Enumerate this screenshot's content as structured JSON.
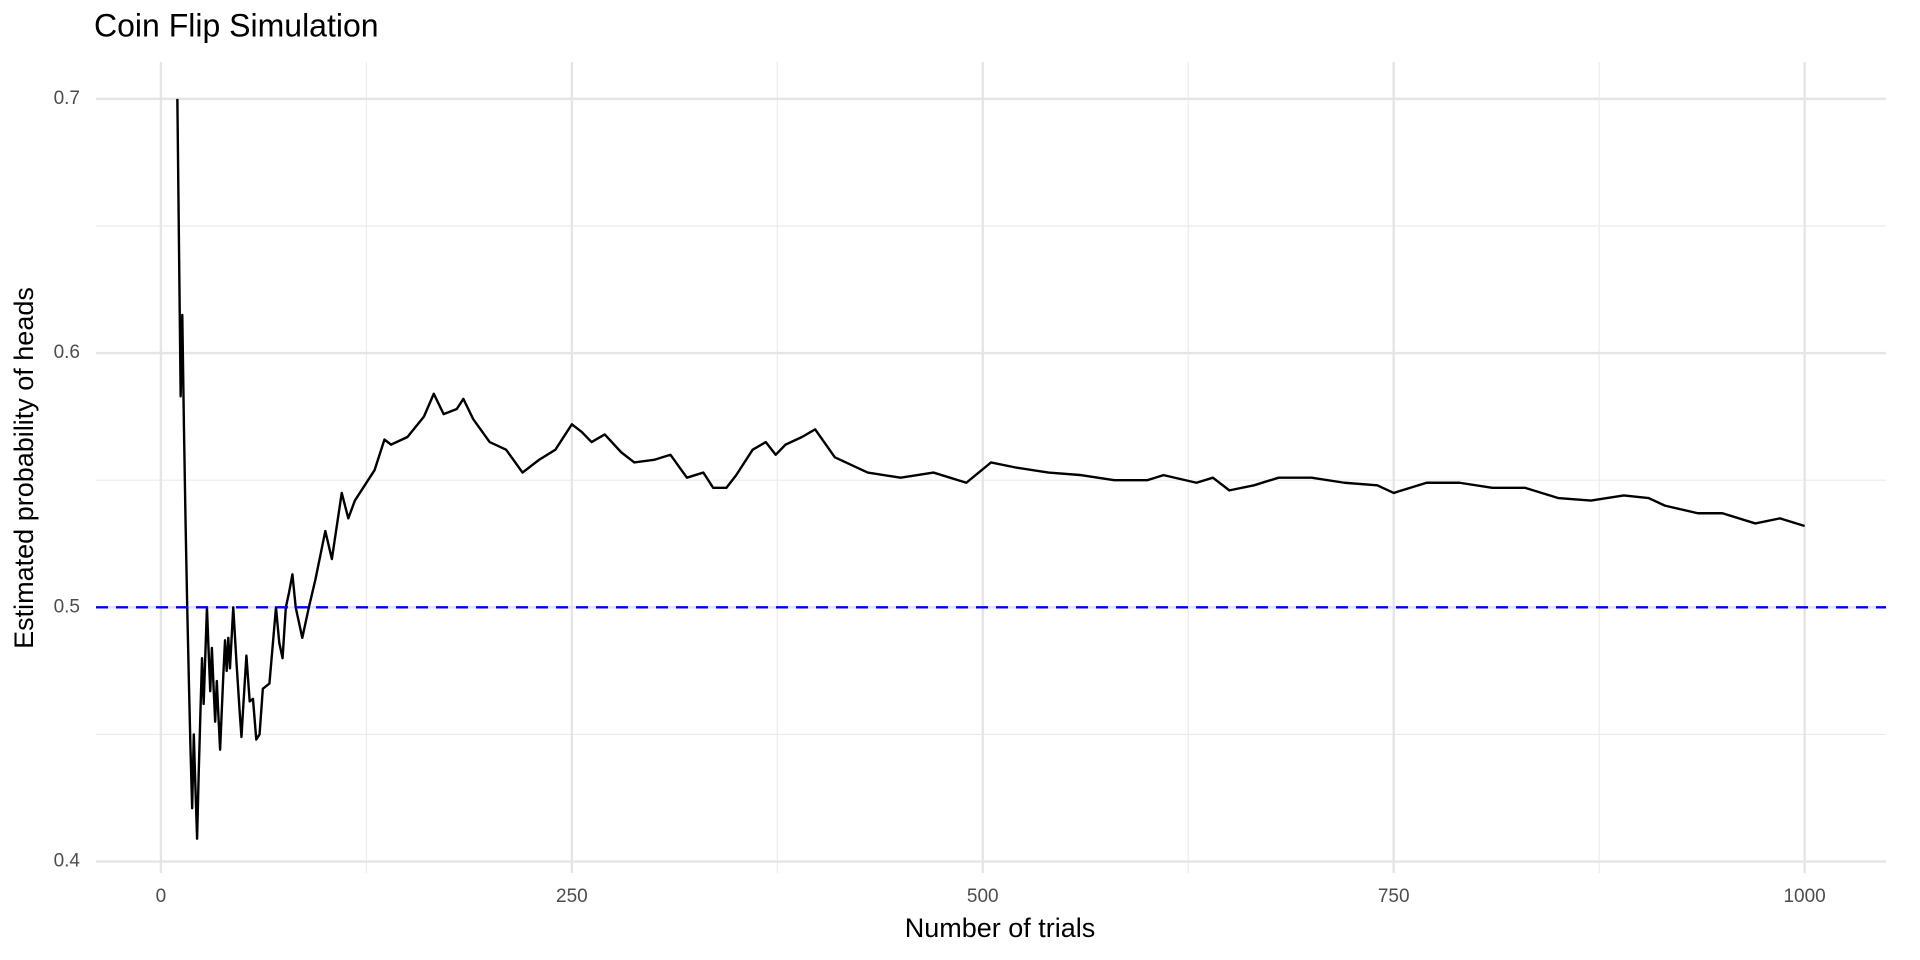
{
  "chart_data": {
    "type": "line",
    "title": "Coin Flip Simulation",
    "x_label": "Number of trials",
    "y_label": "Estimated probability of heads",
    "x": [
      10,
      12,
      13,
      14,
      15,
      16,
      17,
      18,
      19,
      20,
      21,
      22,
      23,
      24,
      25,
      26,
      27,
      28,
      29,
      30,
      31,
      32,
      33,
      34,
      35,
      36,
      37,
      38,
      39,
      40,
      41,
      42,
      43,
      44,
      45,
      46,
      47,
      48,
      49,
      50,
      52,
      54,
      56,
      58,
      60,
      62,
      64,
      66,
      70,
      72,
      74,
      76,
      78,
      80,
      82,
      86,
      90,
      94,
      100,
      104,
      110,
      114,
      118,
      124,
      130,
      136,
      140,
      150,
      160,
      166,
      172,
      180,
      184,
      190,
      200,
      210,
      220,
      230,
      240,
      250,
      256,
      262,
      270,
      280,
      288,
      300,
      310,
      320,
      330,
      336,
      344,
      350,
      360,
      368,
      374,
      380,
      390,
      398,
      410,
      420,
      430,
      450,
      470,
      490,
      505,
      520,
      540,
      560,
      580,
      600,
      610,
      630,
      640,
      650,
      665,
      680,
      700,
      720,
      740,
      750,
      770,
      790,
      810,
      830,
      850,
      870,
      890,
      905,
      915,
      935,
      950,
      970,
      985,
      1000
    ],
    "series": [
      {
        "name": "Estimated probability",
        "color": "#000000",
        "values": [
          0.7,
          0.583,
          0.615,
          0.571,
          0.533,
          0.5,
          0.471,
          0.444,
          0.421,
          0.45,
          0.429,
          0.409,
          0.435,
          0.458,
          0.48,
          0.462,
          0.481,
          0.5,
          0.483,
          0.467,
          0.484,
          0.469,
          0.455,
          0.471,
          0.457,
          0.444,
          0.459,
          0.474,
          0.487,
          0.475,
          0.488,
          0.476,
          0.488,
          0.5,
          0.489,
          0.478,
          0.468,
          0.458,
          0.449,
          0.46,
          0.481,
          0.463,
          0.464,
          0.448,
          0.45,
          0.468,
          0.469,
          0.47,
          0.5,
          0.486,
          0.48,
          0.5,
          0.506,
          0.513,
          0.5,
          0.488,
          0.5,
          0.511,
          0.53,
          0.519,
          0.545,
          0.535,
          0.542,
          0.548,
          0.554,
          0.566,
          0.564,
          0.567,
          0.575,
          0.584,
          0.576,
          0.578,
          0.582,
          0.574,
          0.565,
          0.562,
          0.553,
          0.558,
          0.562,
          0.572,
          0.569,
          0.565,
          0.568,
          0.561,
          0.557,
          0.558,
          0.56,
          0.551,
          0.553,
          0.547,
          0.547,
          0.552,
          0.562,
          0.565,
          0.56,
          0.564,
          0.567,
          0.57,
          0.559,
          0.556,
          0.553,
          0.551,
          0.553,
          0.549,
          0.557,
          0.555,
          0.553,
          0.552,
          0.55,
          0.55,
          0.552,
          0.549,
          0.551,
          0.546,
          0.548,
          0.551,
          0.551,
          0.549,
          0.548,
          0.545,
          0.549,
          0.549,
          0.547,
          0.547,
          0.543,
          0.542,
          0.544,
          0.543,
          0.54,
          0.537,
          0.537,
          0.533,
          0.535,
          0.532
        ]
      }
    ],
    "hline": {
      "value": 0.5,
      "color": "#0000ff"
    },
    "xlim": [
      -39.5,
      1049.5
    ],
    "ylim": [
      0.3955,
      0.7145
    ],
    "xticks": [
      0,
      250,
      500,
      750,
      1000
    ],
    "yticks": [
      0.4,
      0.5,
      0.6,
      0.7
    ],
    "xminorticks": [
      125,
      375,
      625,
      875
    ],
    "yminorticks": [
      0.45,
      0.55,
      0.65
    ],
    "grid": true
  }
}
